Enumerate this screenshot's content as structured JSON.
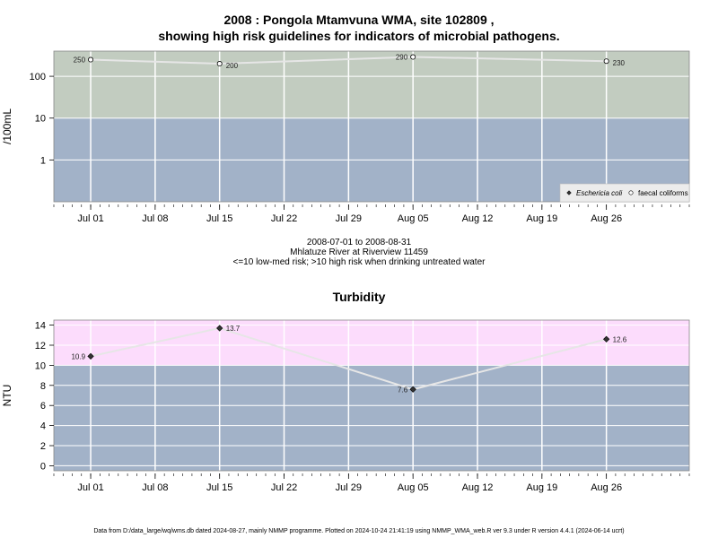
{
  "titles": {
    "chart1_line1": "2008 : Pongola Mtamvuna WMA, site 102809 ,",
    "chart1_line2": "showing high risk guidelines for indicators of microbial pathogens.",
    "chart2": "Turbidity"
  },
  "caption": {
    "line1": "2008-07-01 to 2008-08-31",
    "line2": "Mhlatuze River at Riverview 11459",
    "line3": "<=10 low-med risk; >10 high risk when drinking untreated water"
  },
  "footer": "Data from D:/data_large/wq/wms.db dated 2024-08-27, mainly NMMP programme. Plotted on 2024-10-24 21:41:19 using NMMP_WMA_web.R ver 9.3 under R version 4.4.1 (2024-06-14 ucrt)",
  "colors": {
    "low_band": "#a2b2c8",
    "high_band_microbial": "#c2ccc0",
    "high_band_turbidity": "#fcdcfc",
    "series_line": "#e6e6e6",
    "grid": "#ffffff"
  },
  "chart_data": [
    {
      "type": "line",
      "title": "2008 : Pongola Mtamvuna WMA, site 102809 , showing high risk guidelines for indicators of microbial pathogens.",
      "ylabel": "/100mL",
      "yscale": "log",
      "ylim": [
        0.1,
        400
      ],
      "yticks": [
        1,
        10,
        100
      ],
      "ytick_labels": [
        "1",
        "10",
        "100"
      ],
      "threshold": 10,
      "xlim": [
        "2008-06-27",
        "2008-09-04"
      ],
      "xticks": [
        "2008-07-01",
        "2008-07-08",
        "2008-07-15",
        "2008-07-22",
        "2008-07-29",
        "2008-08-05",
        "2008-08-12",
        "2008-08-19",
        "2008-08-26"
      ],
      "xtick_labels": [
        "Jul 01",
        "Jul 08",
        "Jul 15",
        "Jul 22",
        "Jul 29",
        "Aug 05",
        "Aug 12",
        "Aug 19",
        "Aug 26"
      ],
      "legend": [
        "Eschericia coli",
        "faecal coliforms"
      ],
      "legend_position": "bottom-right",
      "series": [
        {
          "name": "faecal coliforms",
          "x": [
            "2008-07-01",
            "2008-07-15",
            "2008-08-05",
            "2008-08-26"
          ],
          "y": [
            250,
            200,
            290,
            230
          ],
          "labels": [
            "250",
            "200",
            "290",
            "230"
          ]
        }
      ]
    },
    {
      "type": "line",
      "title": "Turbidity",
      "ylabel": "NTU",
      "ylim": [
        -0.5,
        14.5
      ],
      "yticks": [
        0,
        2,
        4,
        6,
        8,
        10,
        12,
        14
      ],
      "ytick_labels": [
        "0",
        "2",
        "4",
        "6",
        "8",
        "10",
        "12",
        "14"
      ],
      "threshold": 10,
      "xlim": [
        "2008-06-27",
        "2008-09-04"
      ],
      "xticks": [
        "2008-07-01",
        "2008-07-08",
        "2008-07-15",
        "2008-07-22",
        "2008-07-29",
        "2008-08-05",
        "2008-08-12",
        "2008-08-19",
        "2008-08-26"
      ],
      "xtick_labels": [
        "Jul 01",
        "Jul 08",
        "Jul 15",
        "Jul 22",
        "Jul 29",
        "Aug 05",
        "Aug 12",
        "Aug 19",
        "Aug 26"
      ],
      "series": [
        {
          "x": [
            "2008-07-01",
            "2008-07-15",
            "2008-08-05",
            "2008-08-26"
          ],
          "y": [
            10.9,
            13.7,
            7.6,
            12.6
          ],
          "labels": [
            "10.9",
            "13.7",
            "7.6",
            "12.6"
          ]
        }
      ]
    }
  ]
}
